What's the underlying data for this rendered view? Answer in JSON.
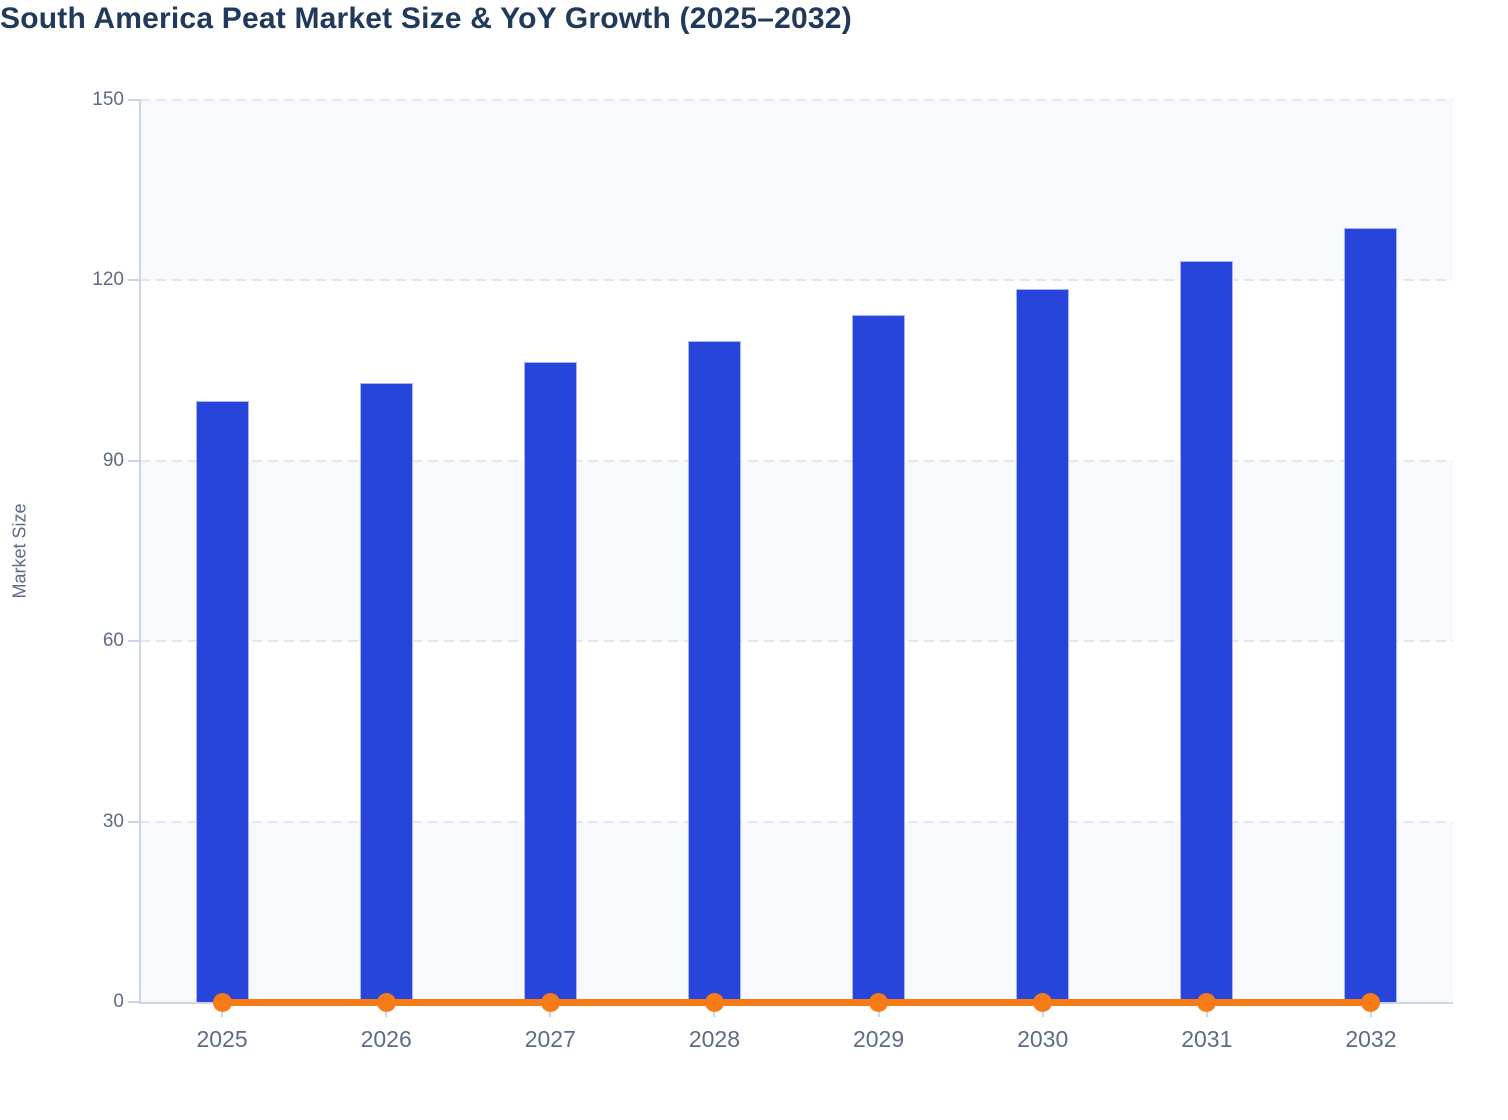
{
  "page_title": "South America Peat Market Size & YoY Growth (2025–2032)",
  "chart_data": {
    "type": "bar",
    "title": "South America Peat Market Size & YoY Growth (2025–2032)",
    "xlabel": "",
    "ylabel": "Market Size",
    "categories": [
      "2025",
      "2026",
      "2027",
      "2028",
      "2029",
      "2030",
      "2031",
      "2032"
    ],
    "series": [
      {
        "name": "Market Size",
        "type": "bar",
        "color": "#2745db",
        "values": [
          100,
          103,
          106.5,
          110,
          114.2,
          118.6,
          123.3,
          128.7
        ]
      },
      {
        "name": "YoY Growth",
        "type": "line",
        "color": "#f77b16",
        "values": [
          0,
          0,
          0,
          0,
          0,
          0,
          0,
          0
        ],
        "appearance": "flat line with round markers hugging the zero baseline"
      }
    ],
    "ylim": [
      0,
      150
    ],
    "yticks": [
      0,
      30,
      60,
      90,
      120,
      150
    ],
    "grid": "dashed horizontal gridlines at each y tick",
    "bands": "alternating light horizontal bands (150-120, 90-60, 30-0 shaded)",
    "legend_position": "none"
  },
  "colors": {
    "title_text": "#21395a",
    "axis_text": "#5d6b84",
    "bar_fill": "#2745db",
    "bar_stroke": "#a9b5ee",
    "line_color": "#f77b16",
    "band_fill": "#f8f9fc",
    "grid_color": "#e2e6ee",
    "axis_line": "#ccd5e8"
  }
}
